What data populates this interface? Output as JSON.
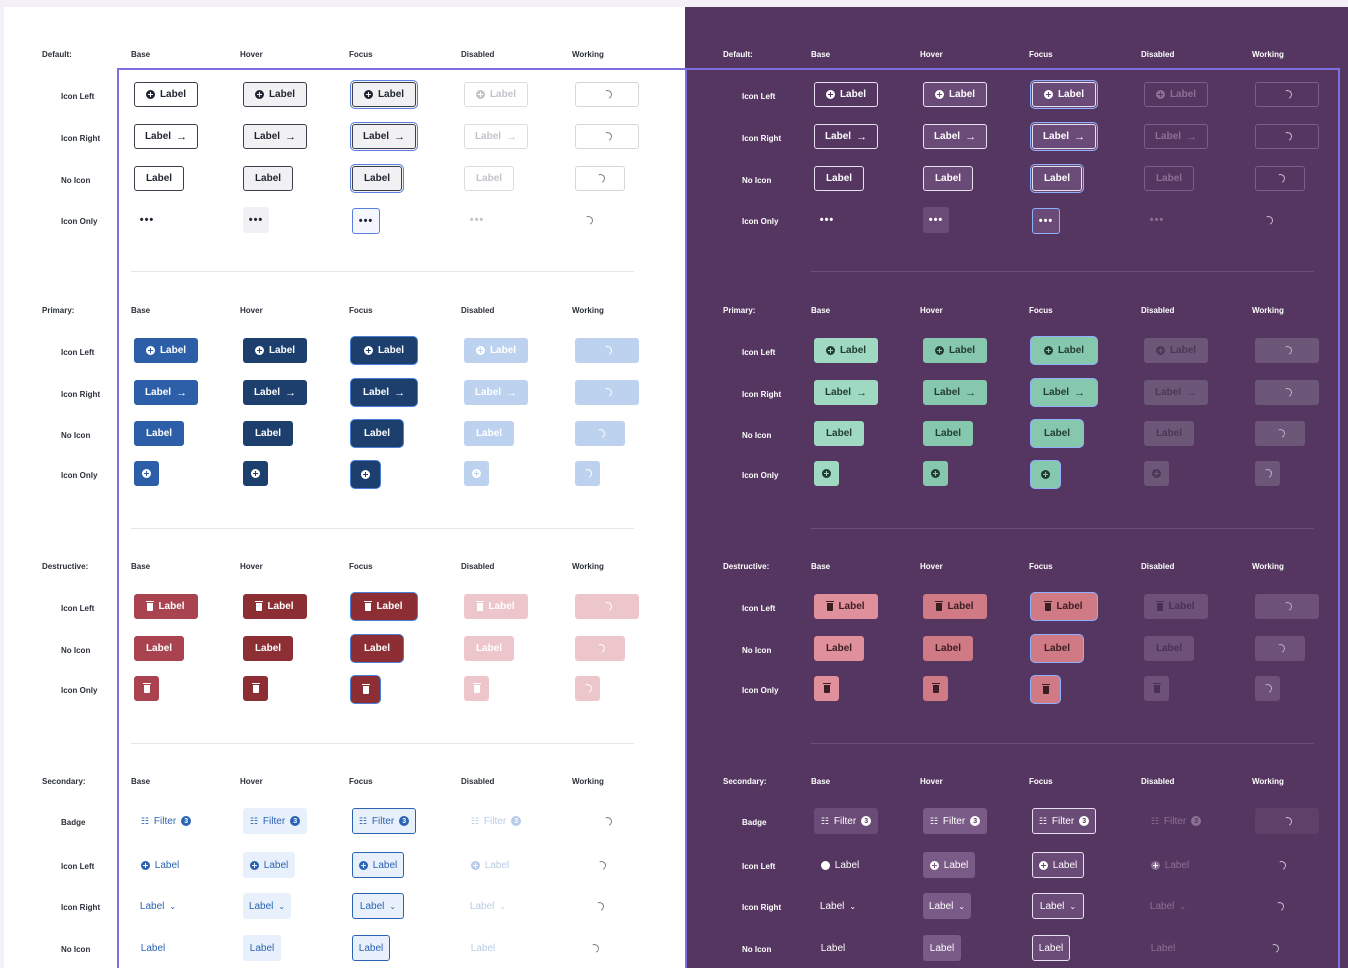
{
  "columns": {
    "base": "Base",
    "hover": "Hover",
    "focus": "Focus",
    "disabled": "Disabled",
    "working": "Working"
  },
  "sections": {
    "default": {
      "title": "Default:",
      "rows": [
        "Icon Left",
        "Icon Right",
        "No Icon",
        "Icon Only"
      ]
    },
    "primary": {
      "title": "Primary:",
      "rows": [
        "Icon Left",
        "Icon Right",
        "No Icon",
        "Icon Only"
      ]
    },
    "destructive": {
      "title": "Destructive:",
      "rows": [
        "Icon Left",
        "No Icon",
        "Icon Only"
      ]
    },
    "secondary": {
      "title": "Secondary:",
      "rows": [
        "Badge",
        "Icon Left",
        "Icon Right",
        "No Icon"
      ]
    }
  },
  "button": {
    "label": "Label",
    "filter_label": "Filter",
    "badge_count": "3",
    "more_glyph": "•••"
  },
  "icons": {
    "add": "plus-circle-icon",
    "arrow": "arrow-right-icon",
    "trash": "trash-icon",
    "more": "more-horizontal-icon",
    "spinner": "loading-spinner-icon",
    "filter": "filter-sliders-icon",
    "chevron": "chevron-down-icon"
  },
  "themes": {
    "light": {
      "background": "#ffffff",
      "primary": "#2c5fa8",
      "destructive": "#a9434f",
      "secondary_text": "#2a63b3"
    },
    "dark": {
      "background": "#553660",
      "primary": "#9fd9c2",
      "destructive": "#e0909a",
      "secondary_text": "#ffffff"
    },
    "frame": "#7d6fe0"
  }
}
